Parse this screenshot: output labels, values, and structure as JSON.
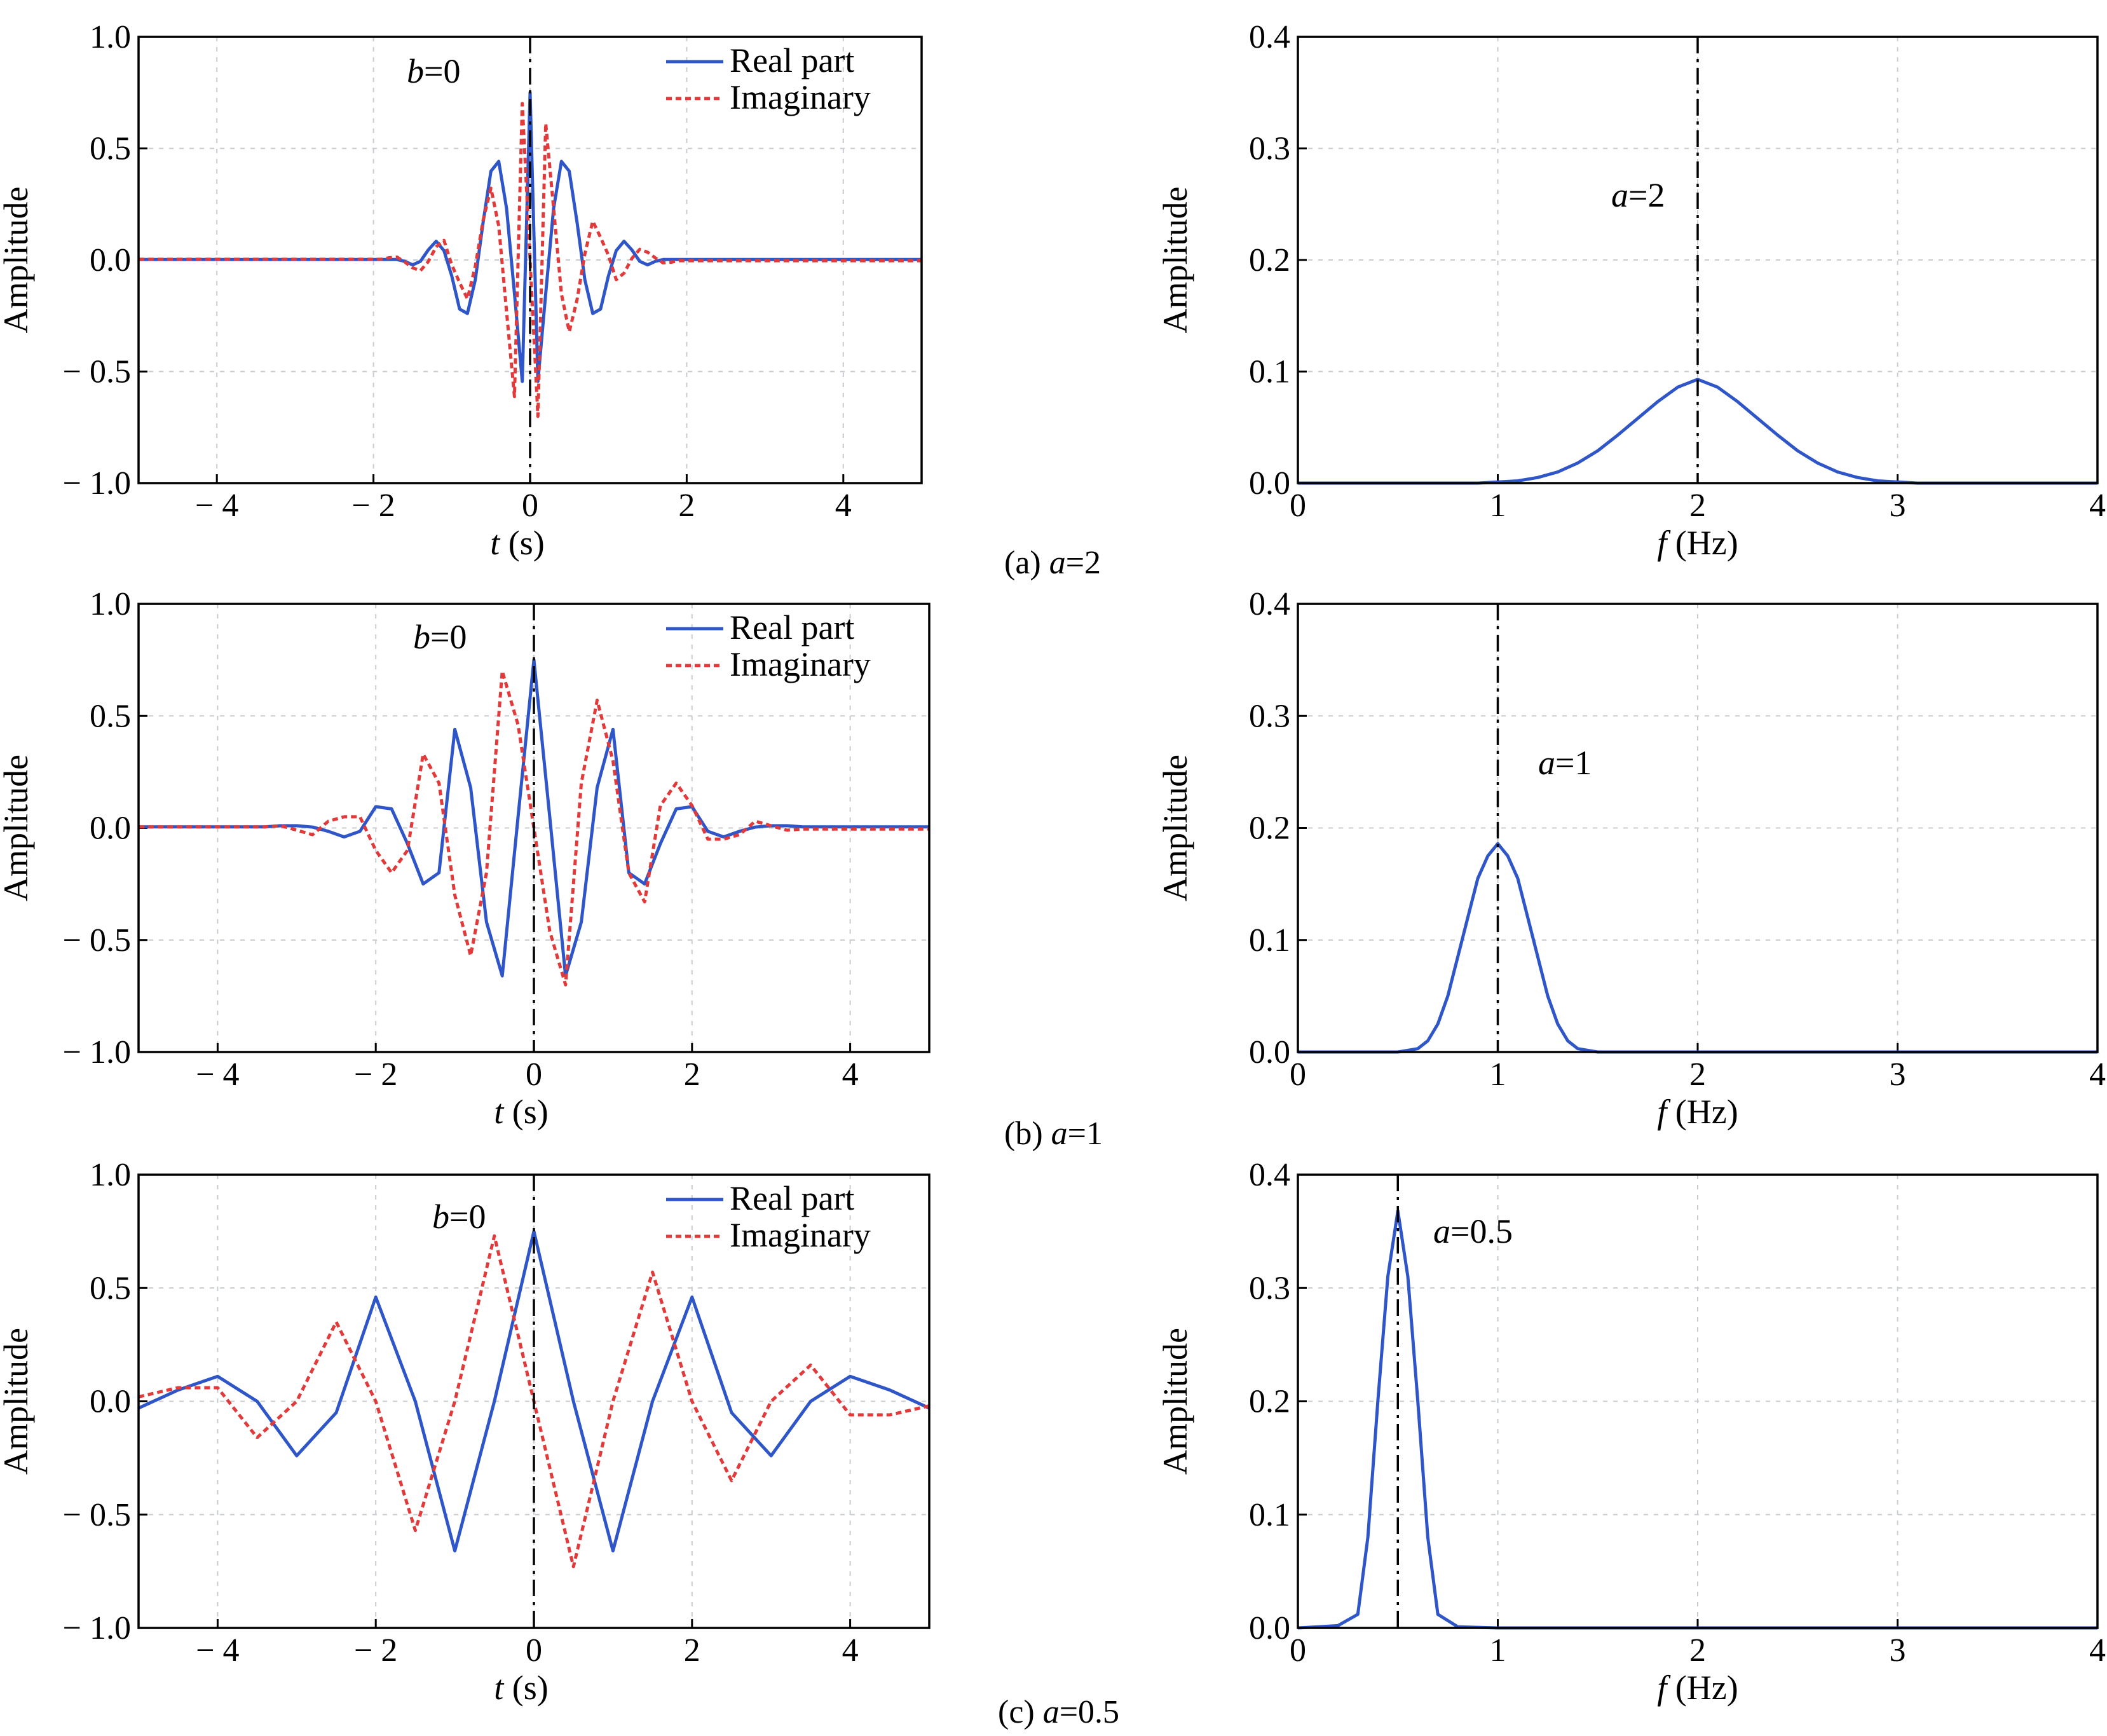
{
  "chart_data": [
    {
      "id": "ta",
      "type": "line",
      "panel": "(a)",
      "xlabel_var": "t",
      "xlabel_unit": " (s)",
      "ylabel": "Amplitude",
      "xlim": [
        -5,
        5
      ],
      "ylim": [
        -1,
        1
      ],
      "xticks": [
        -4,
        -2,
        0,
        2,
        4
      ],
      "xtick_labels": [
        "− 4",
        "− 2",
        "0",
        "2",
        "4"
      ],
      "yticks": [
        -1,
        -0.5,
        0,
        0.5,
        1
      ],
      "ytick_labels": [
        "− 1.0",
        "− 0.5",
        "0.0",
        "0.5",
        "1.0"
      ],
      "a": 2,
      "b": 0,
      "vline_x": 0,
      "annotation_var": "b",
      "annotation_val": "=0",
      "legend": [
        "Real part",
        "Imaginary"
      ],
      "legend_position": "top-right",
      "series": [
        {
          "name": "Real part",
          "color": "#2f56c8",
          "style": "solid",
          "x": [
            -2,
            -1.9,
            -1.8,
            -1.7,
            -1.6,
            -1.5,
            -1.4,
            -1.3,
            -1.2,
            -1.1,
            -1,
            -0.9,
            -0.8,
            -0.7,
            -0.6,
            -0.5,
            -0.4,
            -0.3,
            -0.2,
            -0.1,
            0,
            0.1,
            0.2,
            0.3,
            0.4,
            0.5,
            0.6,
            0.7,
            0.8,
            0.9,
            1,
            1.1,
            1.2,
            1.3,
            1.4,
            1.5,
            1.6,
            1.7,
            1.8,
            1.9,
            2
          ],
          "y": [
            0.002,
            0.002,
            0.002,
            0.002,
            -0.006,
            -0.022,
            -0.006,
            0.045,
            0.084,
            0.042,
            -0.072,
            -0.22,
            -0.24,
            -0.089,
            0.169,
            0.398,
            0.442,
            0.231,
            -0.15,
            -0.544,
            0.751,
            -0.544,
            -0.15,
            0.231,
            0.442,
            0.398,
            0.169,
            -0.089,
            -0.24,
            -0.22,
            -0.072,
            0.042,
            0.084,
            0.045,
            -0.006,
            -0.022,
            -0.006,
            0.002,
            0.002,
            0.002,
            0.002
          ]
        },
        {
          "name": "Imaginary",
          "color": "#e23a3a",
          "style": "dotted",
          "x": [
            -2,
            -1.9,
            -1.8,
            -1.7,
            -1.6,
            -1.5,
            -1.4,
            -1.3,
            -1.2,
            -1.1,
            -1,
            -0.9,
            -0.8,
            -0.7,
            -0.6,
            -0.5,
            -0.4,
            -0.3,
            -0.2,
            -0.1,
            0,
            0.1,
            0.2,
            0.3,
            0.4,
            0.5,
            0.6,
            0.7,
            0.8,
            0.9,
            1,
            1.1,
            1.2,
            1.3,
            1.4,
            1.5,
            1.6,
            1.7,
            1.8,
            1.9,
            2
          ],
          "y": [
            0.003,
            0.003,
            0.01,
            0.013,
            -0.009,
            -0.035,
            -0.048,
            -0.007,
            0.059,
            0.088,
            -0.022,
            -0.101,
            -0.174,
            -0.028,
            0.178,
            0.322,
            0.152,
            -0.232,
            -0.612,
            0.701,
            0,
            -0.701,
            0.612,
            0.232,
            -0.152,
            -0.322,
            -0.178,
            0.028,
            0.174,
            0.101,
            0.022,
            -0.088,
            -0.059,
            0.007,
            0.048,
            0.035,
            0.009,
            -0.013,
            -0.01,
            -0.003,
            -0.003
          ]
        }
      ]
    },
    {
      "id": "fa",
      "type": "line",
      "panel": "(a)",
      "xlabel_var": "f",
      "xlabel_unit": " (Hz)",
      "ylabel": "Amplitude",
      "xlim": [
        0,
        4
      ],
      "ylim": [
        0,
        0.4
      ],
      "xticks": [
        0,
        1,
        2,
        3,
        4
      ],
      "xtick_labels": [
        "0",
        "1",
        "2",
        "3",
        "4"
      ],
      "yticks": [
        0,
        0.1,
        0.2,
        0.3,
        0.4
      ],
      "ytick_labels": [
        "0.0",
        "0.1",
        "0.2",
        "0.3",
        "0.4"
      ],
      "vline_x": 2,
      "annotation_var": "a",
      "annotation_val": "=2",
      "caption_prefix": "(a) ",
      "caption_var": "a",
      "caption_val": "=2",
      "series": [
        {
          "name": "",
          "color": "#2f56c8",
          "style": "solid",
          "x": [
            0,
            0.2,
            0.4,
            0.6,
            0.8,
            0.9,
            1,
            1.1,
            1.2,
            1.3,
            1.4,
            1.5,
            1.6,
            1.7,
            1.8,
            1.9,
            2,
            2.1,
            2.2,
            2.3,
            2.4,
            2.5,
            2.6,
            2.7,
            2.8,
            2.9,
            3,
            3.1,
            3.2,
            3.4,
            3.6,
            3.8,
            4
          ],
          "y": [
            0,
            0,
            0,
            0,
            0,
            0,
            0.001,
            0.002,
            0.005,
            0.01,
            0.018,
            0.029,
            0.043,
            0.058,
            0.073,
            0.086,
            0.093,
            0.086,
            0.073,
            0.058,
            0.043,
            0.029,
            0.018,
            0.01,
            0.005,
            0.002,
            0.001,
            0,
            0,
            0,
            0,
            0,
            0
          ]
        }
      ]
    },
    {
      "id": "tb",
      "type": "line",
      "panel": "(b)",
      "xlabel_var": "t",
      "xlabel_unit": " (s)",
      "ylabel": "Amplitude",
      "xlim": [
        -5,
        5
      ],
      "ylim": [
        -1,
        1
      ],
      "xticks": [
        -4,
        -2,
        0,
        2,
        4
      ],
      "xtick_labels": [
        "− 4",
        "− 2",
        "0",
        "2",
        "4"
      ],
      "yticks": [
        -1,
        -0.5,
        0,
        0.5,
        1
      ],
      "ytick_labels": [
        "− 1.0",
        "− 0.5",
        "0.0",
        "0.5",
        "1.0"
      ],
      "a": 1,
      "b": 0,
      "vline_x": 0,
      "annotation_var": "b",
      "annotation_val": "=0",
      "legend": [
        "Real part",
        "Imaginary"
      ],
      "legend_position": "top-right",
      "series": [
        {
          "name": "Real part",
          "color": "#2f56c8",
          "style": "solid",
          "x": [
            -3.4,
            -3.2,
            -3,
            -2.8,
            -2.6,
            -2.4,
            -2.2,
            -2,
            -1.8,
            -1.6,
            -1.4,
            -1.2,
            -1,
            -0.8,
            -0.6,
            -0.4,
            -0.2,
            0,
            0.2,
            0.4,
            0.6,
            0.8,
            1,
            1.2,
            1.4,
            1.6,
            1.8,
            2,
            2.2,
            2.4,
            2.6,
            2.8,
            3,
            3.2,
            3.4
          ],
          "y": [
            0.005,
            0.01,
            0.01,
            0.004,
            -0.015,
            -0.04,
            -0.015,
            0.095,
            0.085,
            -0.07,
            -0.25,
            -0.2,
            0.44,
            0.18,
            -0.42,
            -0.66,
            0.05,
            0.75,
            0.05,
            -0.66,
            -0.42,
            0.18,
            0.44,
            -0.2,
            -0.25,
            -0.07,
            0.085,
            0.095,
            -0.015,
            -0.04,
            -0.015,
            0.004,
            0.01,
            0.01,
            0.005
          ]
        },
        {
          "name": "Imaginary",
          "color": "#e23a3a",
          "style": "dotted",
          "x": [
            -3.4,
            -3.2,
            -3,
            -2.8,
            -2.6,
            -2.4,
            -2.2,
            -2,
            -1.8,
            -1.6,
            -1.4,
            -1.2,
            -1,
            -0.8,
            -0.6,
            -0.4,
            -0.2,
            0,
            0.2,
            0.4,
            0.6,
            0.8,
            1,
            1.2,
            1.4,
            1.6,
            1.8,
            2,
            2.2,
            2.4,
            2.6,
            2.8,
            3,
            3.2,
            3.4
          ],
          "y": [
            0.005,
            0.01,
            -0.01,
            -0.03,
            0.03,
            0.05,
            0.05,
            -0.1,
            -0.2,
            -0.1,
            0.33,
            0.2,
            -0.3,
            -0.57,
            -0.2,
            0.7,
            0.46,
            0,
            -0.46,
            -0.7,
            0.2,
            0.57,
            0.3,
            -0.2,
            -0.33,
            0.1,
            0.2,
            0.1,
            -0.05,
            -0.05,
            -0.03,
            0.03,
            0.01,
            -0.01,
            -0.005
          ]
        }
      ]
    },
    {
      "id": "fb",
      "type": "line",
      "panel": "(b)",
      "xlabel_var": "f",
      "xlabel_unit": " (Hz)",
      "ylabel": "Amplitude",
      "xlim": [
        0,
        4
      ],
      "ylim": [
        0,
        0.4
      ],
      "xticks": [
        0,
        1,
        2,
        3,
        4
      ],
      "xtick_labels": [
        "0",
        "1",
        "2",
        "3",
        "4"
      ],
      "yticks": [
        0,
        0.1,
        0.2,
        0.3,
        0.4
      ],
      "ytick_labels": [
        "0.0",
        "0.1",
        "0.2",
        "0.3",
        "0.4"
      ],
      "vline_x": 1,
      "annotation_var": "a",
      "annotation_val": "=1",
      "caption_prefix": "(b) ",
      "caption_var": "a",
      "caption_val": "=1",
      "series": [
        {
          "name": "",
          "color": "#2f56c8",
          "style": "solid",
          "x": [
            0,
            0.3,
            0.5,
            0.6,
            0.65,
            0.7,
            0.75,
            0.8,
            0.85,
            0.9,
            0.95,
            1,
            1.05,
            1.1,
            1.15,
            1.2,
            1.25,
            1.3,
            1.35,
            1.4,
            1.5,
            1.7,
            2,
            2.5,
            3,
            3.5,
            4
          ],
          "y": [
            0,
            0,
            0,
            0.003,
            0.01,
            0.025,
            0.05,
            0.085,
            0.12,
            0.155,
            0.175,
            0.186,
            0.175,
            0.155,
            0.12,
            0.085,
            0.05,
            0.025,
            0.01,
            0.003,
            0,
            0,
            0,
            0,
            0,
            0,
            0
          ]
        }
      ]
    },
    {
      "id": "tc",
      "type": "line",
      "panel": "(c)",
      "xlabel_var": "t",
      "xlabel_unit": " (s)",
      "ylabel": "Amplitude",
      "xlim": [
        -5,
        5
      ],
      "ylim": [
        -1,
        1
      ],
      "xticks": [
        -4,
        -2,
        0,
        2,
        4
      ],
      "xtick_labels": [
        "− 4",
        "− 2",
        "0",
        "2",
        "4"
      ],
      "yticks": [
        -1,
        -0.5,
        0,
        0.5,
        1
      ],
      "ytick_labels": [
        "− 1.0",
        "− 0.5",
        "0.0",
        "0.5",
        "1.0"
      ],
      "a": 0.5,
      "b": 0,
      "vline_x": 0,
      "annotation_var": "b",
      "annotation_val": "=0",
      "legend": [
        "Real part",
        "Imaginary"
      ],
      "legend_position": "top-right",
      "series": [
        {
          "name": "Real part",
          "color": "#2f56c8",
          "style": "solid",
          "x": [
            -5,
            -4.5,
            -4,
            -3.5,
            -3,
            -2.5,
            -2,
            -1.5,
            -1,
            -0.5,
            0,
            0.5,
            1,
            1.5,
            2,
            2.5,
            3,
            3.5,
            4,
            4.5,
            5
          ],
          "y": [
            -0.03,
            0.05,
            0.11,
            0,
            -0.24,
            -0.05,
            0.46,
            0,
            -0.66,
            0,
            0.75,
            0,
            -0.66,
            0,
            0.46,
            -0.05,
            -0.24,
            0,
            0.11,
            0.05,
            -0.03
          ]
        },
        {
          "name": "Imaginary",
          "color": "#e23a3a",
          "style": "dotted",
          "x": [
            -5,
            -4.5,
            -4,
            -3.5,
            -3,
            -2.5,
            -2,
            -1.5,
            -1,
            -0.5,
            0,
            0.5,
            1,
            1.5,
            2,
            2.5,
            3,
            3.5,
            4,
            4.5,
            5
          ],
          "y": [
            0.02,
            0.06,
            0.06,
            -0.16,
            0,
            0.35,
            0,
            -0.57,
            0,
            0.73,
            0,
            -0.73,
            0,
            0.57,
            0,
            -0.35,
            0,
            0.16,
            -0.06,
            -0.06,
            -0.02
          ]
        }
      ]
    },
    {
      "id": "fc",
      "type": "line",
      "panel": "(c)",
      "xlabel_var": "f",
      "xlabel_unit": " (Hz)",
      "ylabel": "Amplitude",
      "xlim": [
        0,
        4
      ],
      "ylim": [
        0,
        0.4
      ],
      "xticks": [
        0,
        1,
        2,
        3,
        4
      ],
      "xtick_labels": [
        "0",
        "1",
        "2",
        "3",
        "4"
      ],
      "yticks": [
        0,
        0.1,
        0.2,
        0.3,
        0.4
      ],
      "ytick_labels": [
        "0.0",
        "0.1",
        "0.2",
        "0.3",
        "0.4"
      ],
      "vline_x": 0.5,
      "annotation_var": "a",
      "annotation_val": "=0.5",
      "caption_prefix": "(c) ",
      "caption_var": "a",
      "caption_val": "=0.5",
      "series": [
        {
          "name": "",
          "color": "#2f56c8",
          "style": "solid",
          "x": [
            0,
            0.1,
            0.2,
            0.3,
            0.35,
            0.4,
            0.45,
            0.5,
            0.55,
            0.6,
            0.65,
            0.7,
            0.8,
            1,
            1.5,
            2,
            3,
            4
          ],
          "y": [
            0,
            0.001,
            0.002,
            0.012,
            0.08,
            0.2,
            0.31,
            0.368,
            0.31,
            0.2,
            0.08,
            0.012,
            0.001,
            0,
            0,
            0,
            0,
            0
          ]
        }
      ]
    }
  ]
}
